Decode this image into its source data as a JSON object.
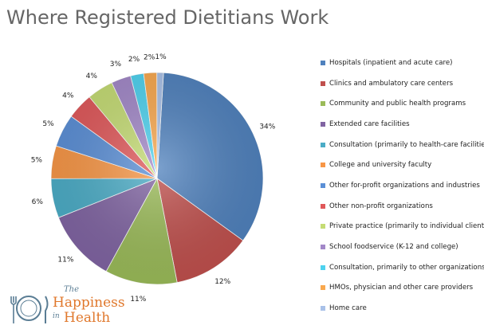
{
  "chart_data": {
    "type": "pie",
    "title": "Where Registered Dietitians Work",
    "legend_position": "right",
    "slices": [
      {
        "label": "Hospitals (inpatient and acute care)",
        "value": 34,
        "value_label": "34%",
        "color": "#4f81bd"
      },
      {
        "label": "Clinics and ambulatory care centers",
        "value": 12,
        "value_label": "12%",
        "color": "#c0504d"
      },
      {
        "label": "Community and public health programs",
        "value": 11,
        "value_label": "11%",
        "color": "#9bbb59"
      },
      {
        "label": "Extended care facilities",
        "value": 11,
        "value_label": "11%",
        "color": "#8064a2"
      },
      {
        "label": "Consultation (primarily to health-care facilities)",
        "value": 6,
        "value_label": "6%",
        "color": "#4bacc6"
      },
      {
        "label": "College and university faculty",
        "value": 5,
        "value_label": "5%",
        "color": "#f79646"
      },
      {
        "label": "Other for-profit organizations and industries",
        "value": 5,
        "value_label": "5%",
        "color": "#5b8fd6"
      },
      {
        "label": "Other non-profit organizations",
        "value": 4,
        "value_label": "4%",
        "color": "#e0585a"
      },
      {
        "label": "Private practice (primarily to individual clients)",
        "value": 4,
        "value_label": "4%",
        "color": "#c5dc74"
      },
      {
        "label": "School foodservice (K-12 and college)",
        "value": 3,
        "value_label": "3%",
        "color": "#a288c8"
      },
      {
        "label": "Consultation, primarily to other organizations",
        "value": 2,
        "value_label": "2%",
        "color": "#4ed2ef"
      },
      {
        "label": "HMOs, physician and other care providers",
        "value": 2,
        "value_label": "2%",
        "color": "#f9a84e"
      },
      {
        "label": "Home care",
        "value": 1,
        "value_label": "1%",
        "color": "#a9c1e8"
      }
    ]
  },
  "watermark": {
    "the": "The",
    "happiness": "Happiness",
    "in": "in",
    "health": "Health"
  }
}
